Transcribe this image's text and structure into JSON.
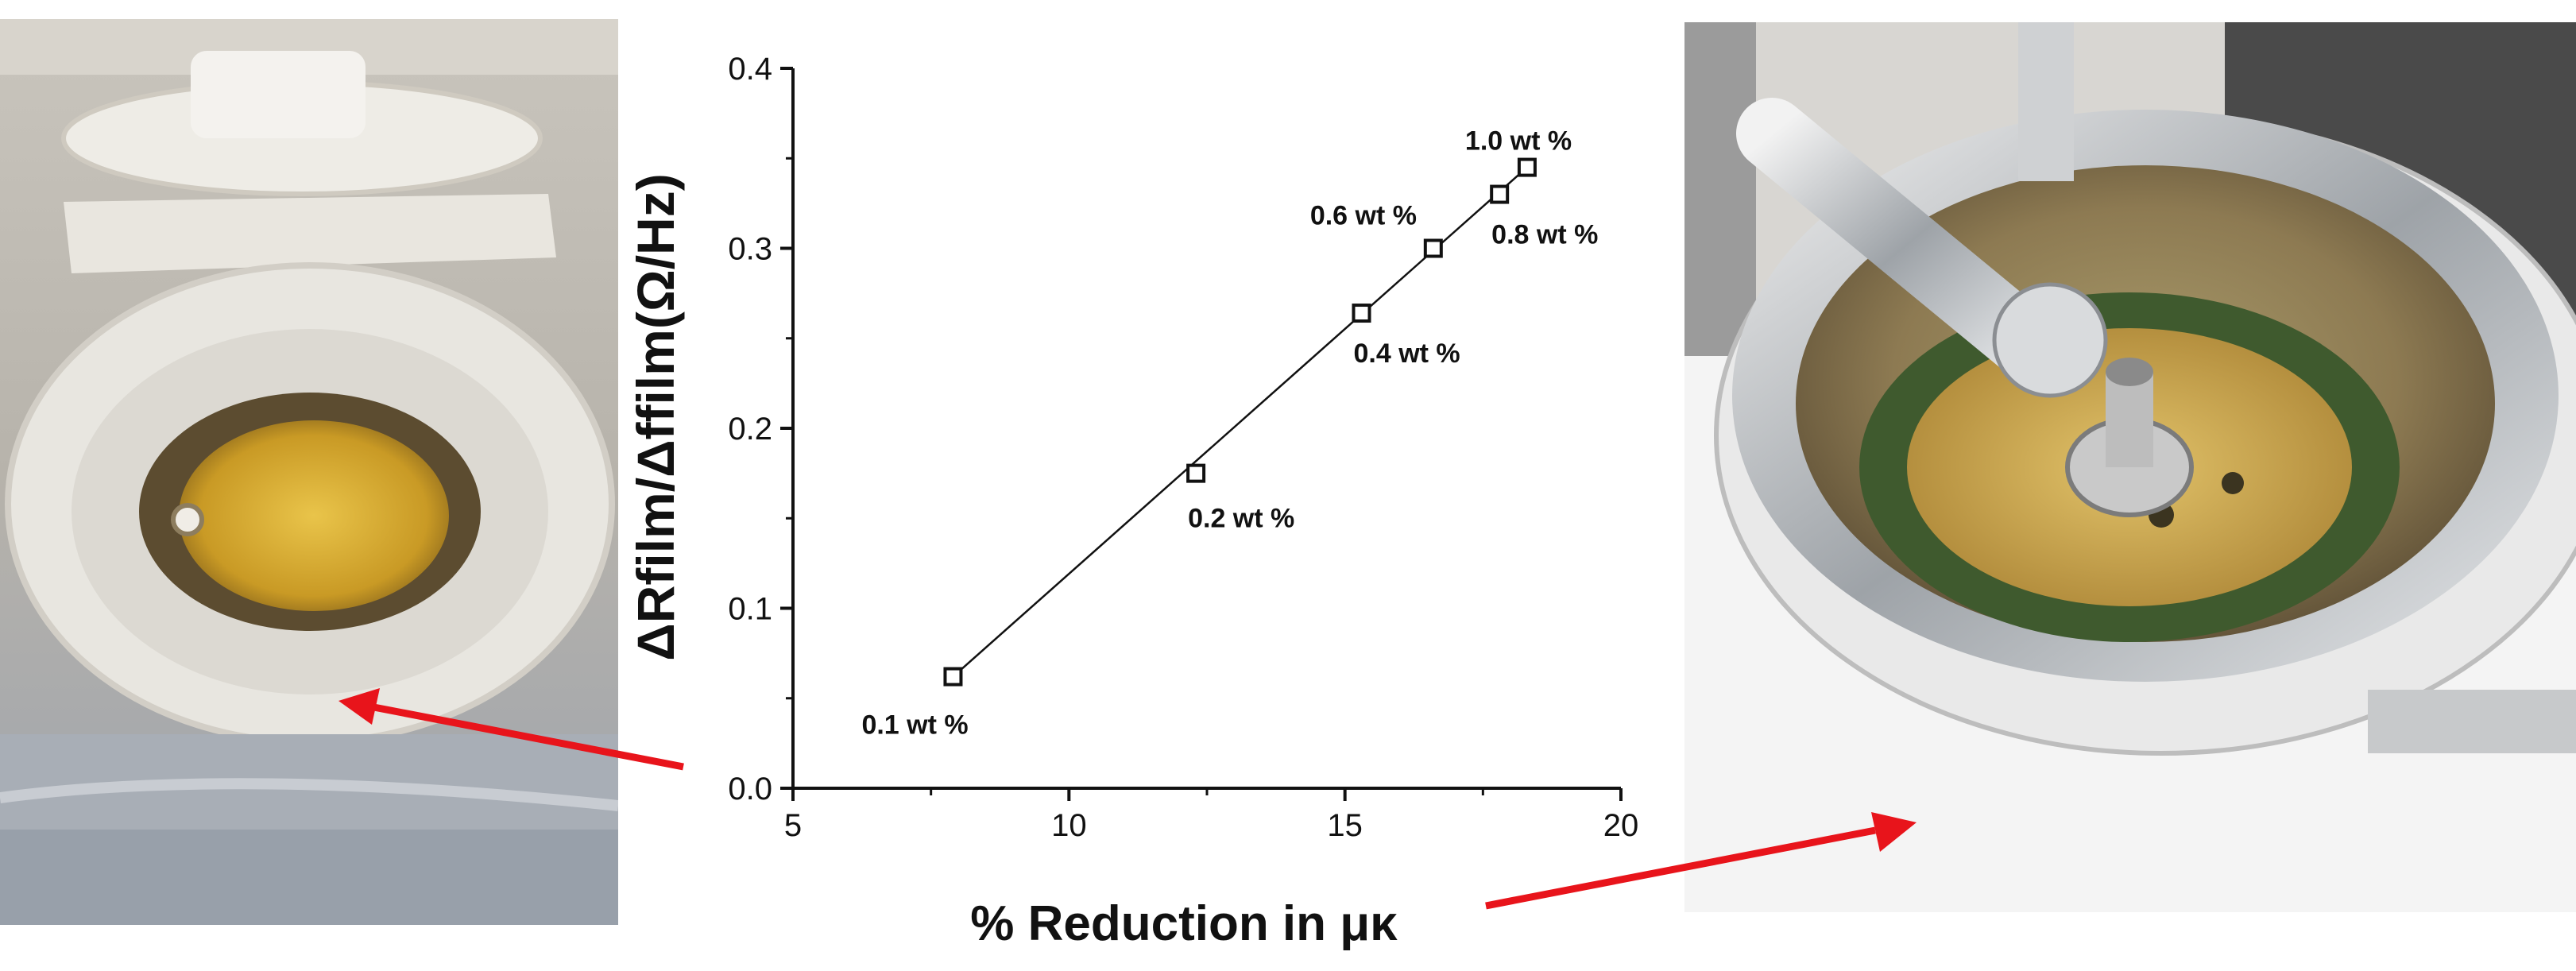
{
  "chart_data": {
    "type": "scatter",
    "title": "",
    "xlabel": "% Reduction in μκ",
    "ylabel": "ΔRfilm/Δffilm(Ω/Hz)",
    "xlim": [
      5,
      20
    ],
    "ylim": [
      0.0,
      0.4
    ],
    "xticks": [
      5,
      10,
      15,
      20
    ],
    "yticks": [
      0.0,
      0.1,
      0.2,
      0.3,
      0.4
    ],
    "grid": false,
    "fit_line": true,
    "series": [
      {
        "marker": "open-square",
        "points": [
          {
            "x": 7.9,
            "y": 0.062,
            "label": "0.1 wt %"
          },
          {
            "x": 12.3,
            "y": 0.175,
            "label": "0.2 wt %"
          },
          {
            "x": 15.3,
            "y": 0.264,
            "label": "0.4 wt %"
          },
          {
            "x": 16.6,
            "y": 0.3,
            "label": "0.6 wt %"
          },
          {
            "x": 17.8,
            "y": 0.33,
            "label": "0.8 wt %"
          },
          {
            "x": 18.3,
            "y": 0.345,
            "label": "1.0 wt %"
          }
        ]
      }
    ]
  },
  "images": {
    "left_photo": "QCM sensor holder with gold crystal in white fixture",
    "right_photo": "Steel QCM flow cell with gold sensor disk"
  },
  "colors": {
    "arrow": "#e8141b",
    "axis": "#111111"
  }
}
